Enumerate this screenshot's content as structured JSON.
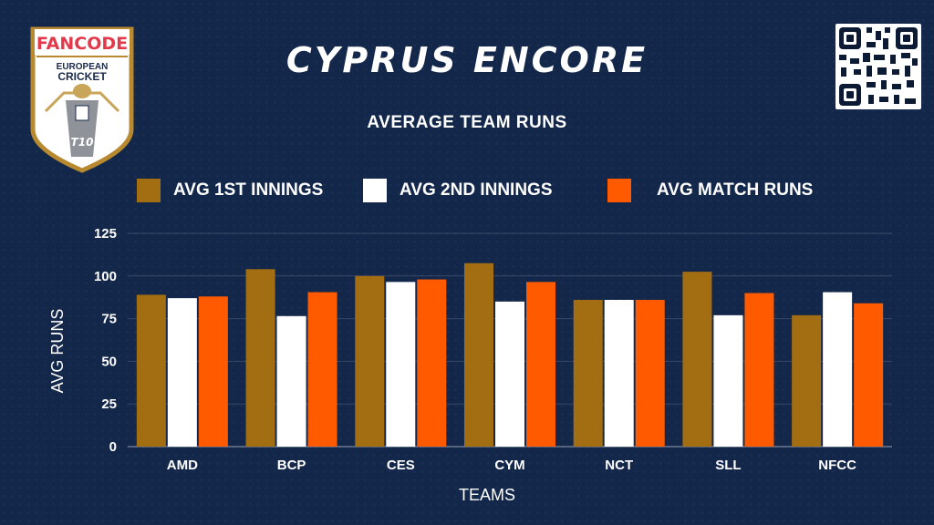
{
  "header": {
    "title": "CYPRUS ENCORE",
    "subtitle": "AVERAGE TEAM RUNS"
  },
  "logo": {
    "brand": "FANCODE",
    "line1": "EUROPEAN",
    "line2": "CRICKET",
    "format": "T10"
  },
  "colors": {
    "background": "#13274a",
    "series_1": "#a36d12",
    "series_2": "#ffffff",
    "series_3": "#ff5a00",
    "logo_gold": "#b8892e"
  },
  "legend": [
    {
      "label": "AVG 1ST INNINGS",
      "color": "#a36d12"
    },
    {
      "label": "AVG 2ND INNINGS",
      "color": "#ffffff"
    },
    {
      "label": "AVG MATCH RUNS",
      "color": "#ff5a00"
    }
  ],
  "chart_data": {
    "type": "bar",
    "title": "AVERAGE TEAM RUNS",
    "xlabel": "TEAMS",
    "ylabel": "AVG RUNS",
    "ylim": [
      0,
      125
    ],
    "yticks": [
      0,
      25,
      50,
      75,
      100,
      125
    ],
    "grid": true,
    "legend_position": "top",
    "categories": [
      "AMD",
      "BCP",
      "CES",
      "CYM",
      "NCT",
      "SLL",
      "NFCC"
    ],
    "series": [
      {
        "name": "AVG 1ST INNINGS",
        "color": "#a36d12",
        "values": [
          89,
          104,
          100,
          107.5,
          86,
          102.5,
          77
        ]
      },
      {
        "name": "AVG 2ND INNINGS",
        "color": "#ffffff",
        "values": [
          87,
          76.5,
          96.5,
          85,
          86,
          77,
          90.5
        ]
      },
      {
        "name": "AVG MATCH RUNS",
        "color": "#ff5a00",
        "values": [
          88,
          90.5,
          98,
          96.5,
          86,
          90,
          84
        ]
      }
    ]
  }
}
